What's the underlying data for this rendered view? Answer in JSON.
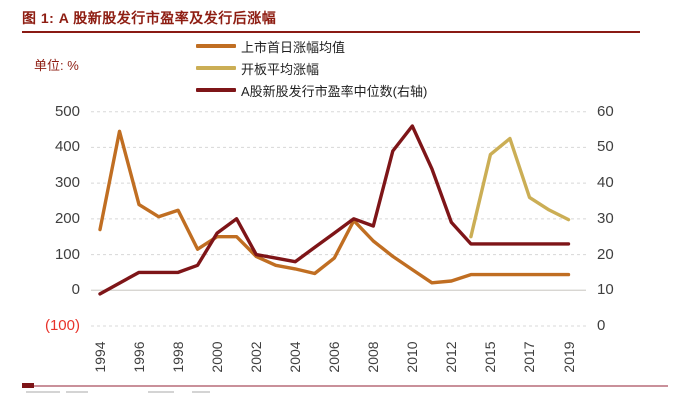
{
  "title": "图 1: A 股新股发行市盈率及发行后涨幅",
  "unit_label": "单位: %",
  "legend": [
    {
      "label": "上市首日涨幅均值",
      "color": "#c06e22"
    },
    {
      "label": "开板平均涨幅",
      "color": "#cbae55"
    },
    {
      "label": "A股新股发行市盈率中位数(右轴)",
      "color": "#7e1518"
    }
  ],
  "axes": {
    "left_ticks": [
      "500",
      "400",
      "300",
      "200",
      "100",
      "0",
      "(100)"
    ],
    "right_ticks": [
      "60",
      "50",
      "40",
      "30",
      "20",
      "10",
      "0"
    ],
    "x_tick_labels": [
      "1994",
      "1996",
      "1998",
      "2000",
      "2002",
      "2004",
      "2006",
      "2008",
      "2010",
      "2012",
      "2015",
      "2017",
      "2019"
    ]
  },
  "colors": {
    "title_red": "#8e1d12",
    "rule_red": "#8a1a14",
    "orange_line": "#c06e22",
    "tan_line": "#cbae55",
    "dark_red_line": "#7e1518",
    "axis_text": "#3f3f3f",
    "negative_tick_red": "#e8322a",
    "gridline": "#d8d8d8",
    "zero_line": "#d2d0cb",
    "footer_rule_pink": "#c9909a"
  },
  "chart_data": {
    "type": "line",
    "title": "A 股新股发行市盈率及发行后涨幅",
    "unit": "%",
    "categories": [
      "1994",
      "1995",
      "1996",
      "1997",
      "1998",
      "1999",
      "2000",
      "2001",
      "2002",
      "2003",
      "2004",
      "2005",
      "2006",
      "2007",
      "2008",
      "2009",
      "2010",
      "2011",
      "2012",
      "2014",
      "2015",
      "2016",
      "2017",
      "2018",
      "2019"
    ],
    "note_categories": "2013 absent (IPO suspension); x labels shown every 2nd category",
    "series": [
      {
        "name": "上市首日涨幅均值",
        "axis": "left",
        "color": "#c06e22",
        "values": [
          170,
          445,
          240,
          206,
          224,
          115,
          150,
          150,
          95,
          70,
          60,
          47,
          90,
          195,
          138,
          95,
          58,
          21,
          26,
          44,
          44,
          44,
          44,
          44,
          44
        ]
      },
      {
        "name": "开板平均涨幅",
        "axis": "left",
        "color": "#cbae55",
        "values": [
          null,
          null,
          null,
          null,
          null,
          null,
          null,
          null,
          null,
          null,
          null,
          null,
          null,
          null,
          null,
          null,
          null,
          null,
          null,
          150,
          380,
          425,
          260,
          225,
          198
        ]
      },
      {
        "name": "A股新股发行市盈率中位数(右轴)",
        "axis": "right",
        "color": "#7e1518",
        "values": [
          9,
          12,
          15,
          15,
          15,
          17,
          26,
          30,
          20,
          19,
          18,
          22,
          26,
          30,
          28,
          49,
          56,
          44,
          29,
          23,
          23,
          23,
          23,
          23,
          23
        ]
      }
    ],
    "left_axis": {
      "min": -100,
      "max": 500,
      "tick_step": 100,
      "negative_format": "parentheses-red"
    },
    "right_axis": {
      "min": 0,
      "max": 60,
      "tick_step": 10
    },
    "grid": "dashed-horizontal",
    "legend_position": "top-center"
  }
}
